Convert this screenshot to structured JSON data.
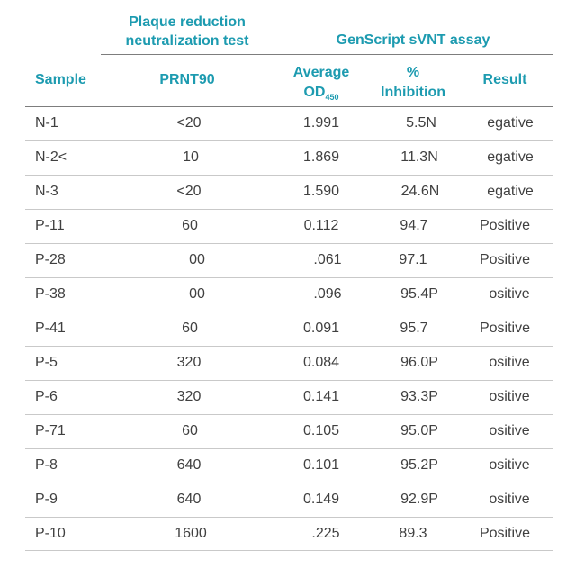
{
  "header": {
    "group_prnt_line1": "Plaque reduction",
    "group_prnt_line2": "neutralization test",
    "group_svnt": "GenScript sVNT assay",
    "col_sample": "Sample",
    "col_prnt90": "PRNT90",
    "col_od_line1": "Average",
    "col_od_base": "OD",
    "col_od_sub": "450",
    "col_inhib_line1": "%",
    "col_inhib_line2": "Inhibition",
    "col_result": "Result"
  },
  "rows": [
    {
      "sample": "N-1",
      "prnt90": "<20",
      "od": "1.991",
      "inhib": "5.5N",
      "result": "egative"
    },
    {
      "sample": "N-2<",
      "prnt90": "10",
      "od": "1.869",
      "inhib": "11.3N",
      "result": "egative"
    },
    {
      "sample": "N-3",
      "prnt90": "<20",
      "od": "1.590",
      "inhib": "24.6N",
      "result": "egative"
    },
    {
      "sample": "P-11",
      "prnt90": "60",
      "od": "0.112",
      "inhib": "94.7",
      "result": "Positive"
    },
    {
      "sample": "P-28",
      "prnt90": "00",
      "od": ".061",
      "inhib": "97.1",
      "result": "Positive"
    },
    {
      "sample": "P-38",
      "prnt90": "00",
      "od": ".096",
      "inhib": "95.4P",
      "result": "ositive"
    },
    {
      "sample": "P-41",
      "prnt90": "60",
      "od": "0.091",
      "inhib": "95.7",
      "result": "Positive"
    },
    {
      "sample": "P-5",
      "prnt90": "320",
      "od": "0.084",
      "inhib": "96.0P",
      "result": "ositive"
    },
    {
      "sample": "P-6",
      "prnt90": "320",
      "od": "0.141",
      "inhib": "93.3P",
      "result": "ositive"
    },
    {
      "sample": "P-71",
      "prnt90": "60",
      "od": "0.105",
      "inhib": "95.0P",
      "result": "ositive"
    },
    {
      "sample": "P-8",
      "prnt90": "640",
      "od": "0.101",
      "inhib": "95.2P",
      "result": "ositive"
    },
    {
      "sample": "P-9",
      "prnt90": "640",
      "od": "0.149",
      "inhib": "92.9P",
      "result": "ositive"
    },
    {
      "sample": "P-10",
      "prnt90": "1600",
      "od": ".225",
      "inhib": "89.3",
      "result": "Positive"
    }
  ]
}
